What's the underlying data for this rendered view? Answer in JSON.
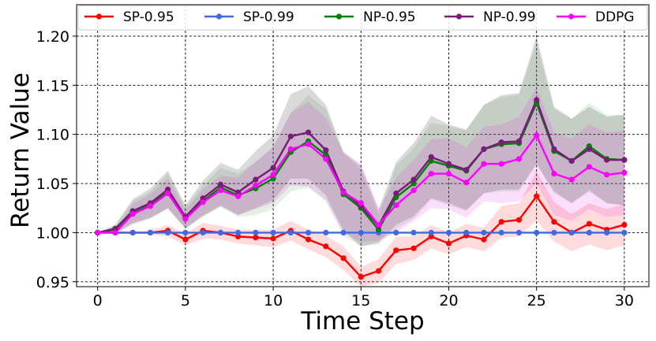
{
  "chart_data": {
    "type": "line",
    "title": "",
    "xlabel": "Time Step",
    "ylabel": "Return Value",
    "xlim": [
      -1.2,
      31.4
    ],
    "ylim": [
      0.945,
      1.232
    ],
    "xticks": [
      0,
      5,
      10,
      15,
      20,
      25,
      30
    ],
    "xtick_labels": [
      "0",
      "5",
      "10",
      "15",
      "20",
      "25",
      "30"
    ],
    "yticks": [
      0.95,
      1.0,
      1.05,
      1.1,
      1.15,
      1.2
    ],
    "ytick_labels": [
      "0.95",
      "1.00",
      "1.05",
      "1.10",
      "1.15",
      "1.20"
    ],
    "grid": true,
    "legend_position": "top",
    "x": [
      0,
      1,
      2,
      3,
      4,
      5,
      6,
      7,
      8,
      9,
      10,
      11,
      12,
      13,
      14,
      15,
      16,
      17,
      18,
      19,
      20,
      21,
      22,
      23,
      24,
      25,
      26,
      27,
      28,
      29,
      30
    ],
    "series": [
      {
        "name": "SP-0.95",
        "color": "#ff0000",
        "values": [
          1.0,
          1.0,
          1.0,
          1.0,
          1.002,
          0.993,
          1.002,
          1.0,
          0.996,
          0.995,
          0.994,
          1.002,
          0.993,
          0.986,
          0.974,
          0.955,
          0.961,
          0.982,
          0.984,
          0.996,
          0.989,
          0.997,
          0.993,
          1.011,
          1.013,
          1.037,
          1.011,
          1.0,
          1.009,
          1.003,
          1.008
        ],
        "band_lower": [
          1.0,
          1.0,
          1.0,
          0.998,
          0.996,
          0.987,
          0.994,
          0.993,
          0.989,
          0.987,
          0.985,
          0.992,
          0.983,
          0.975,
          0.962,
          0.945,
          0.949,
          0.968,
          0.972,
          0.984,
          0.978,
          0.985,
          0.981,
          0.995,
          0.996,
          1.012,
          0.991,
          0.981,
          0.988,
          0.982,
          0.987
        ],
        "band_upper": [
          1.0,
          1.0,
          1.0,
          1.002,
          1.008,
          0.999,
          1.01,
          1.007,
          1.003,
          1.003,
          1.003,
          1.012,
          1.003,
          0.997,
          0.986,
          0.965,
          0.973,
          0.996,
          0.996,
          1.008,
          1.0,
          1.009,
          1.005,
          1.027,
          1.03,
          1.062,
          1.031,
          1.019,
          1.03,
          1.024,
          1.029
        ]
      },
      {
        "name": "SP-0.99",
        "color": "#4169e1",
        "values": [
          1.0,
          1.0,
          1.0,
          1.0,
          1.0,
          1.0,
          1.0,
          1.0,
          1.0,
          1.0,
          1.0,
          1.0,
          1.0,
          1.0,
          1.0,
          1.0,
          1.0,
          1.0,
          1.0,
          1.0,
          1.0,
          1.0,
          1.0,
          1.0,
          1.0,
          1.0,
          1.0,
          1.0,
          1.0,
          1.0,
          1.0
        ]
      },
      {
        "name": "NP-0.95",
        "color": "#008000",
        "values": [
          1.0,
          1.003,
          1.02,
          1.028,
          1.042,
          1.015,
          1.032,
          1.046,
          1.038,
          1.045,
          1.055,
          1.082,
          1.093,
          1.079,
          1.039,
          1.025,
          1.003,
          1.036,
          1.05,
          1.073,
          1.068,
          1.063,
          1.085,
          1.09,
          1.091,
          1.132,
          1.083,
          1.073,
          1.088,
          1.075,
          1.074
        ],
        "band_lower": [
          1.0,
          0.999,
          1.008,
          1.014,
          1.024,
          1.004,
          1.016,
          1.026,
          1.016,
          1.018,
          1.024,
          1.042,
          1.046,
          1.032,
          0.997,
          0.986,
          0.988,
          1.004,
          1.014,
          1.034,
          1.028,
          1.022,
          1.04,
          1.042,
          1.042,
          1.07,
          1.04,
          1.03,
          1.044,
          1.03,
          1.028
        ],
        "band_upper": [
          1.0,
          1.007,
          1.032,
          1.042,
          1.06,
          1.026,
          1.048,
          1.066,
          1.06,
          1.072,
          1.086,
          1.122,
          1.14,
          1.126,
          1.081,
          1.064,
          1.018,
          1.068,
          1.086,
          1.112,
          1.108,
          1.104,
          1.13,
          1.138,
          1.14,
          1.194,
          1.126,
          1.116,
          1.132,
          1.12,
          1.12
        ]
      },
      {
        "name": "NP-0.99",
        "color": "#7a1a7a",
        "values": [
          1.0,
          1.004,
          1.022,
          1.03,
          1.044,
          1.016,
          1.035,
          1.049,
          1.041,
          1.054,
          1.066,
          1.098,
          1.102,
          1.084,
          1.042,
          1.027,
          1.007,
          1.04,
          1.054,
          1.077,
          1.07,
          1.064,
          1.085,
          1.092,
          1.093,
          1.135,
          1.085,
          1.073,
          1.085,
          1.074,
          1.074
        ],
        "band_lower": [
          1.0,
          1.0,
          1.01,
          1.015,
          1.025,
          1.004,
          1.017,
          1.027,
          1.018,
          1.025,
          1.033,
          1.055,
          1.055,
          1.038,
          1.002,
          0.986,
          0.99,
          1.008,
          1.017,
          1.035,
          1.03,
          1.023,
          1.04,
          1.044,
          1.044,
          1.07,
          1.042,
          1.03,
          1.042,
          1.03,
          1.028
        ],
        "band_upper": [
          1.0,
          1.008,
          1.034,
          1.045,
          1.063,
          1.028,
          1.053,
          1.071,
          1.064,
          1.083,
          1.099,
          1.141,
          1.149,
          1.13,
          1.082,
          1.068,
          1.024,
          1.072,
          1.091,
          1.119,
          1.11,
          1.105,
          1.13,
          1.14,
          1.142,
          1.2,
          1.128,
          1.116,
          1.128,
          1.118,
          1.12
        ]
      },
      {
        "name": "DDPG",
        "color": "#ff00ff",
        "values": [
          1.0,
          1.0,
          1.019,
          1.027,
          1.04,
          1.014,
          1.031,
          1.043,
          1.037,
          1.048,
          1.059,
          1.085,
          1.09,
          1.075,
          1.041,
          1.03,
          1.008,
          1.028,
          1.043,
          1.06,
          1.06,
          1.051,
          1.07,
          1.07,
          1.075,
          1.099,
          1.06,
          1.054,
          1.067,
          1.059,
          1.061
        ],
        "band_lower": [
          1.0,
          0.998,
          1.009,
          1.015,
          1.025,
          1.005,
          1.018,
          1.028,
          1.018,
          1.024,
          1.03,
          1.048,
          1.047,
          1.033,
          1.0,
          0.99,
          0.992,
          1.0,
          1.012,
          1.025,
          1.024,
          1.015,
          1.032,
          1.03,
          1.032,
          1.05,
          1.018,
          1.012,
          1.024,
          1.016,
          1.018
        ],
        "band_upper": [
          1.0,
          1.002,
          1.029,
          1.039,
          1.055,
          1.023,
          1.044,
          1.058,
          1.056,
          1.072,
          1.088,
          1.122,
          1.133,
          1.117,
          1.082,
          1.07,
          1.024,
          1.056,
          1.074,
          1.095,
          1.096,
          1.087,
          1.108,
          1.11,
          1.118,
          1.148,
          1.102,
          1.096,
          1.11,
          1.102,
          1.104
        ]
      }
    ]
  }
}
